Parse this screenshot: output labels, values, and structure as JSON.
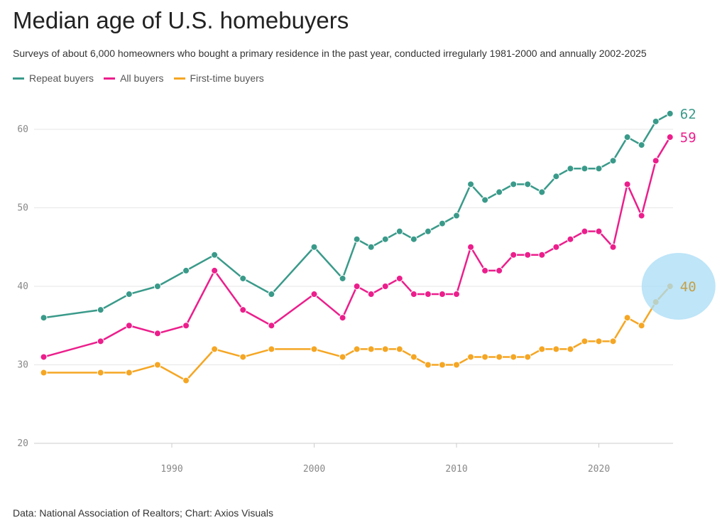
{
  "chart_data": {
    "type": "line",
    "title": "Median age of U.S. homebuyers",
    "subtitle": "Surveys of about 6,000 homeowners who bought a primary residence in the past year, conducted irregularly 1981-2000 and annually 2002-2025",
    "source": "Data: National Association of Realtors; Chart: Axios Visuals",
    "legend_position": "top-left",
    "grid": true,
    "ylim": [
      20,
      62
    ],
    "yticks": [
      "20",
      "30",
      "40",
      "50",
      "60"
    ],
    "xlim": [
      1981,
      2025
    ],
    "xticks": [
      "1990",
      "2000",
      "2010",
      "2020"
    ],
    "x": [
      1981,
      1985,
      1987,
      1989,
      1991,
      1993,
      1995,
      1997,
      2000,
      2002,
      2003,
      2004,
      2005,
      2006,
      2007,
      2008,
      2009,
      2010,
      2011,
      2012,
      2013,
      2014,
      2015,
      2016,
      2017,
      2018,
      2019,
      2020,
      2021,
      2022,
      2023,
      2024,
      2025
    ],
    "series": [
      {
        "name": "Repeat buyers",
        "color": "#3a9a8a",
        "end_label": "62",
        "values": [
          36,
          37,
          39,
          40,
          42,
          44,
          41,
          39,
          45,
          41,
          46,
          45,
          46,
          47,
          46,
          47,
          48,
          49,
          53,
          51,
          52,
          53,
          53,
          52,
          54,
          55,
          55,
          55,
          56,
          59,
          58,
          61,
          62
        ]
      },
      {
        "name": "All buyers",
        "color": "#ec1e8c",
        "end_label": "59",
        "values": [
          31,
          33,
          35,
          34,
          35,
          42,
          37,
          35,
          39,
          36,
          40,
          39,
          40,
          41,
          39,
          39,
          39,
          39,
          45,
          42,
          42,
          44,
          44,
          44,
          45,
          46,
          47,
          47,
          45,
          53,
          49,
          56,
          59
        ]
      },
      {
        "name": "First-time buyers",
        "color": "#f5a623",
        "end_label": "40",
        "end_label_color": "#c2a04a",
        "values": [
          29,
          29,
          29,
          30,
          28,
          32,
          31,
          32,
          32,
          31,
          32,
          32,
          32,
          32,
          31,
          30,
          30,
          30,
          31,
          31,
          31,
          31,
          31,
          32,
          32,
          32,
          33,
          33,
          33,
          36,
          35,
          38,
          40
        ]
      }
    ],
    "highlight": {
      "color": "#a8dcf5",
      "target": "First-time buyers 2025"
    }
  }
}
